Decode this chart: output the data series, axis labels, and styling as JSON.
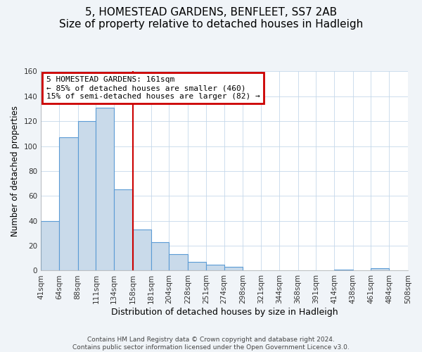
{
  "title": "5, HOMESTEAD GARDENS, BENFLEET, SS7 2AB",
  "subtitle": "Size of property relative to detached houses in Hadleigh",
  "xlabel": "Distribution of detached houses by size in Hadleigh",
  "ylabel": "Number of detached properties",
  "bin_edges": [
    41,
    64,
    88,
    111,
    134,
    158,
    181,
    204,
    228,
    251,
    274,
    298,
    321,
    344,
    368,
    391,
    414,
    438,
    461,
    484,
    508
  ],
  "bar_heights": [
    40,
    107,
    120,
    131,
    65,
    33,
    23,
    13,
    7,
    5,
    3,
    0,
    0,
    0,
    0,
    0,
    1,
    0,
    2,
    0
  ],
  "tick_labels": [
    "41sqm",
    "64sqm",
    "88sqm",
    "111sqm",
    "134sqm",
    "158sqm",
    "181sqm",
    "204sqm",
    "228sqm",
    "251sqm",
    "274sqm",
    "298sqm",
    "321sqm",
    "344sqm",
    "368sqm",
    "391sqm",
    "414sqm",
    "438sqm",
    "461sqm",
    "484sqm",
    "508sqm"
  ],
  "bar_color": "#c9daea",
  "bar_edge_color": "#5b9bd5",
  "vline_x": 158,
  "vline_color": "#cc0000",
  "annotation_title": "5 HOMESTEAD GARDENS: 161sqm",
  "annotation_line1": "← 85% of detached houses are smaller (460)",
  "annotation_line2": "15% of semi-detached houses are larger (82) →",
  "annotation_box_color": "#cc0000",
  "ylim": [
    0,
    160
  ],
  "yticks": [
    0,
    20,
    40,
    60,
    80,
    100,
    120,
    140,
    160
  ],
  "footer1": "Contains HM Land Registry data © Crown copyright and database right 2024.",
  "footer2": "Contains public sector information licensed under the Open Government Licence v3.0.",
  "title_fontsize": 11,
  "subtitle_fontsize": 9.5,
  "xlabel_fontsize": 9,
  "ylabel_fontsize": 8.5,
  "tick_fontsize": 7.5,
  "annotation_fontsize": 8,
  "footer_fontsize": 6.5,
  "fig_bg_color": "#f0f4f8"
}
